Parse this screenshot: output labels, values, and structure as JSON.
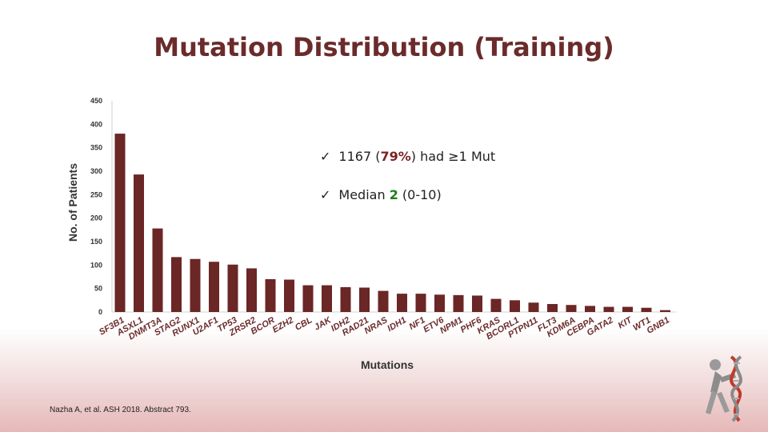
{
  "title": "Mutation Distribution (Training)",
  "bullets": [
    {
      "check": "✓",
      "pre": "1167 (",
      "highlight": "79%",
      "post": ") had ≥1 Mut"
    },
    {
      "check": "✓",
      "pre": "Median ",
      "highlight": "2",
      "post": " (0-10)"
    }
  ],
  "citation": "Nazha A, et al. ASH 2018. Abstract 793.",
  "logo_icon": "dna-helix-icon",
  "colors": {
    "title": "#6b2b2b",
    "bar": "#6b2626",
    "highlight_red": "#7a2424",
    "highlight_green": "#1f7a1f"
  },
  "chart_data": {
    "type": "bar",
    "xlabel": "Mutations",
    "ylabel": "No. of Patients",
    "ylim": [
      0,
      450
    ],
    "yticks": [
      0,
      50,
      100,
      150,
      200,
      250,
      300,
      350,
      400,
      450
    ],
    "grid": false,
    "categories": [
      "SF3B1",
      "ASXL1",
      "DNMT3A",
      "STAG2",
      "RUNX1",
      "U2AF1",
      "TP53",
      "ZRSR2",
      "BCOR",
      "EZH2",
      "CBL",
      "JAK",
      "IDH2",
      "RAD21",
      "NRAS",
      "IDH1",
      "NF1",
      "ETV6",
      "NPM1",
      "PHF6",
      "KRAS",
      "BCORL1",
      "PTPN11",
      "FLT3",
      "KDM6A",
      "CEBPA",
      "GATA2",
      "KIT",
      "WT1",
      "GNB1"
    ],
    "values": [
      380,
      293,
      178,
      117,
      113,
      107,
      101,
      93,
      70,
      69,
      57,
      57,
      53,
      52,
      45,
      39,
      39,
      37,
      36,
      35,
      28,
      25,
      20,
      17,
      15,
      13,
      11,
      11,
      9,
      4
    ]
  }
}
